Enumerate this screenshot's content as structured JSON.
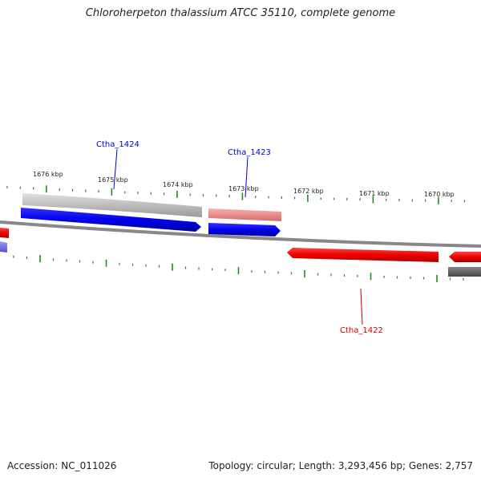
{
  "title": "Chloroherpeton thalassium ATCC 35110, complete genome",
  "footer": {
    "accession": "Accession: NC_011026",
    "stats": "Topology: circular; Length: 3,293,456 bp; Genes: 2,757"
  },
  "ticks": [
    "1676 kbp",
    "1675 kbp",
    "1674 kbp",
    "1673 kbp",
    "1672 kbp",
    "1671 kbp",
    "1670 kbp"
  ],
  "genes": [
    {
      "name": "Ctha_1424",
      "color": "#0000cc"
    },
    {
      "name": "Ctha_1423",
      "color": "#0000cc"
    },
    {
      "name": "Ctha_1422",
      "color": "#cc0000"
    }
  ],
  "colors": {
    "forward_cds": "#0000ee",
    "reverse_cds": "#ee0000",
    "backbone": "#888888",
    "tick": "#228822",
    "feature_gray": "#bbbbbb",
    "feature_pink": "#e88a8a",
    "feature_dark": "#666666"
  }
}
